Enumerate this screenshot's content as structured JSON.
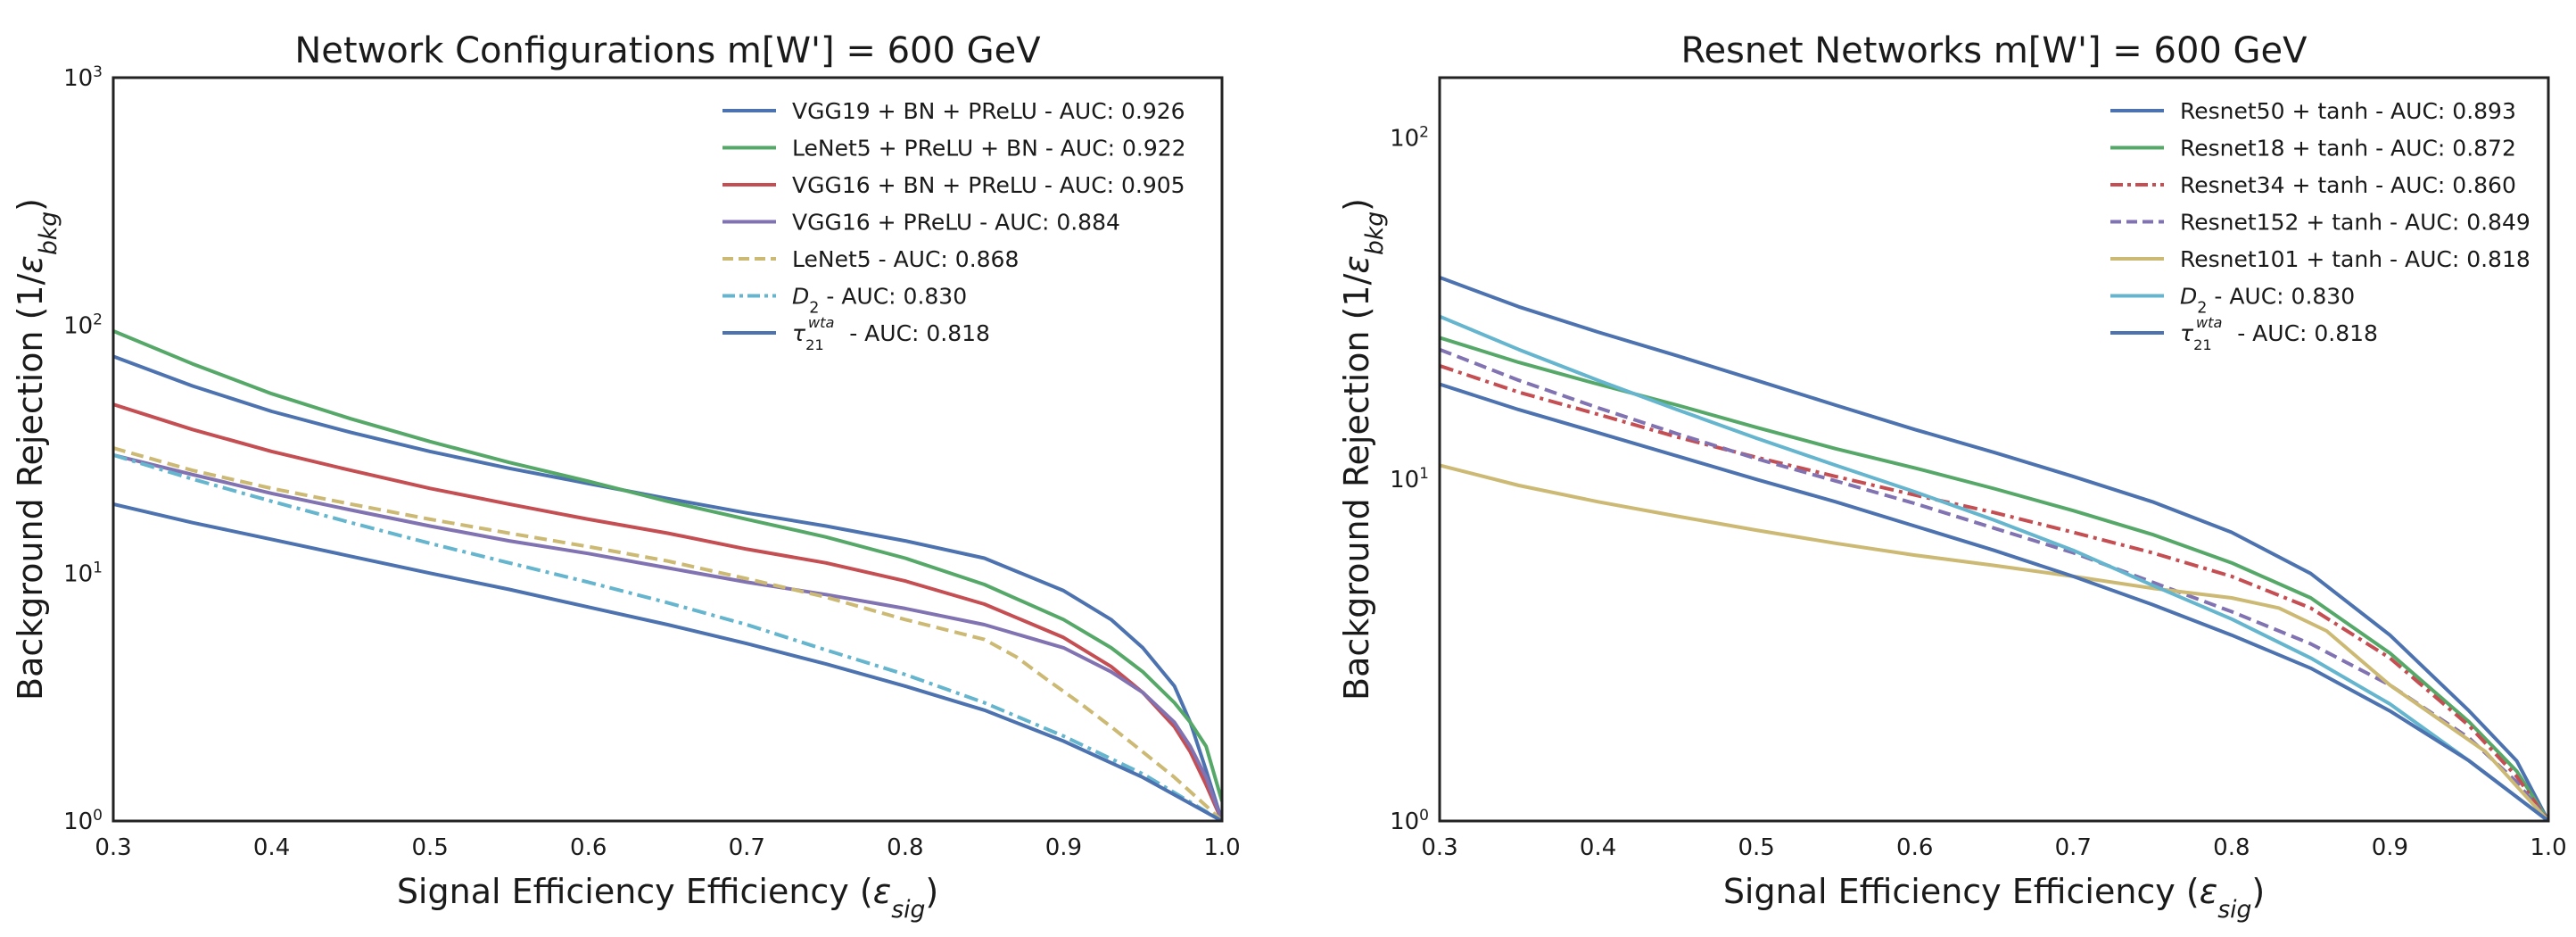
{
  "chart_data": [
    {
      "type": "line",
      "title": "Network Configurations m[W'] = 600 GeV",
      "xlabel": "Signal Efficiency Efficiency (ε_sig)",
      "ylabel": "Background Rejection (1/ε_bkg)",
      "xlim": [
        0.3,
        1.0
      ],
      "ylim": [
        1,
        1000
      ],
      "yscale": "log",
      "xticks": [
        0.3,
        0.4,
        0.5,
        0.6,
        0.7,
        0.8,
        0.9,
        1.0
      ],
      "xtick_labels": [
        "0.3",
        "0.4",
        "0.5",
        "0.6",
        "0.7",
        "0.8",
        "0.9",
        "1.0"
      ],
      "yticks": [
        {
          "base": "10",
          "exp": "0",
          "v": 1
        },
        {
          "base": "10",
          "exp": "1",
          "v": 10
        },
        {
          "base": "10",
          "exp": "2",
          "v": 100
        },
        {
          "base": "10",
          "exp": "3",
          "v": 1000
        }
      ],
      "grid": false,
      "legend": "top-right",
      "series": [
        {
          "name": "VGG19 + BN + PReLU - AUC: 0.926",
          "color": "#4c72b0",
          "dash": "solid",
          "x": [
            0.3,
            0.35,
            0.4,
            0.45,
            0.5,
            0.55,
            0.6,
            0.65,
            0.7,
            0.75,
            0.8,
            0.85,
            0.9,
            0.93,
            0.95,
            0.97,
            0.98,
            0.99,
            1.0
          ],
          "y": [
            75,
            57,
            45,
            37,
            31,
            26.5,
            23,
            20,
            17.5,
            15.5,
            13.5,
            11.5,
            8.5,
            6.5,
            5,
            3.5,
            2.5,
            1.6,
            1.0
          ]
        },
        {
          "name": "LeNet5 + PReLU + BN - AUC: 0.922",
          "color": "#55a868",
          "dash": "solid",
          "x": [
            0.3,
            0.35,
            0.4,
            0.45,
            0.5,
            0.55,
            0.6,
            0.65,
            0.7,
            0.75,
            0.8,
            0.85,
            0.9,
            0.93,
            0.95,
            0.97,
            0.98,
            0.99,
            1.0
          ],
          "y": [
            95,
            70,
            53,
            42,
            34,
            28,
            23.5,
            19.5,
            16.5,
            14,
            11.5,
            9,
            6.5,
            5,
            4,
            3,
            2.5,
            2,
            1.2
          ]
        },
        {
          "name": "VGG16 + BN + PReLU - AUC: 0.905",
          "color": "#c44e52",
          "dash": "solid",
          "x": [
            0.3,
            0.35,
            0.4,
            0.45,
            0.5,
            0.55,
            0.6,
            0.65,
            0.7,
            0.75,
            0.8,
            0.85,
            0.9,
            0.93,
            0.95,
            0.97,
            0.98,
            0.99,
            1.0
          ],
          "y": [
            48,
            38,
            31,
            26,
            22,
            19,
            16.5,
            14.5,
            12.5,
            11,
            9.3,
            7.5,
            5.5,
            4.2,
            3.3,
            2.4,
            1.9,
            1.4,
            1.0
          ]
        },
        {
          "name": "VGG16 + PReLU - AUC: 0.884",
          "color": "#8172b2",
          "dash": "solid",
          "x": [
            0.3,
            0.35,
            0.4,
            0.45,
            0.5,
            0.55,
            0.6,
            0.65,
            0.7,
            0.75,
            0.8,
            0.85,
            0.9,
            0.93,
            0.95,
            0.97,
            0.98,
            0.99,
            1.0
          ],
          "y": [
            30,
            25,
            21,
            18,
            15.5,
            13.5,
            12,
            10.5,
            9.2,
            8.2,
            7.2,
            6.2,
            5,
            4,
            3.3,
            2.5,
            2,
            1.5,
            1.0
          ]
        },
        {
          "name": "LeNet5 - AUC: 0.868",
          "color": "#ccb974",
          "dash": "dashed",
          "x": [
            0.3,
            0.35,
            0.4,
            0.45,
            0.5,
            0.55,
            0.6,
            0.65,
            0.7,
            0.75,
            0.8,
            0.85,
            0.87,
            0.89,
            0.91,
            0.93,
            0.95,
            0.97,
            0.99,
            1.0
          ],
          "y": [
            32,
            26,
            22,
            19,
            16.5,
            14.5,
            12.8,
            11.2,
            9.5,
            8,
            6.5,
            5.4,
            4.6,
            3.7,
            3,
            2.4,
            1.9,
            1.5,
            1.15,
            1.0
          ]
        },
        {
          "name": "D₂ - AUC: 0.830",
          "color": "#64b5cd",
          "dash": "dashdot",
          "x": [
            0.3,
            0.35,
            0.4,
            0.45,
            0.5,
            0.55,
            0.6,
            0.65,
            0.7,
            0.75,
            0.8,
            0.85,
            0.9,
            0.95,
            1.0
          ],
          "y": [
            30,
            24,
            19.5,
            16,
            13.2,
            11,
            9.2,
            7.6,
            6.2,
            4.9,
            3.9,
            3,
            2.2,
            1.55,
            1.0
          ]
        },
        {
          "name": "τ₂₁^wta - AUC: 0.818",
          "color": "#4c72b0",
          "dash": "solid",
          "x": [
            0.3,
            0.35,
            0.4,
            0.45,
            0.5,
            0.55,
            0.6,
            0.65,
            0.7,
            0.75,
            0.8,
            0.85,
            0.9,
            0.95,
            1.0
          ],
          "y": [
            19,
            16,
            13.7,
            11.7,
            10,
            8.6,
            7.3,
            6.2,
            5.2,
            4.3,
            3.5,
            2.8,
            2.1,
            1.5,
            1.0
          ]
        }
      ]
    },
    {
      "type": "line",
      "title": "Resnet Networks m[W'] = 600 GeV",
      "xlabel": "Signal Efficiency Efficiency (ε_sig)",
      "ylabel": "Background Rejection (1/ε_bkg)",
      "xlim": [
        0.3,
        1.0
      ],
      "ylim": [
        1,
        150
      ],
      "yscale": "log",
      "xticks": [
        0.3,
        0.4,
        0.5,
        0.6,
        0.7,
        0.8,
        0.9,
        1.0
      ],
      "xtick_labels": [
        "0.3",
        "0.4",
        "0.5",
        "0.6",
        "0.7",
        "0.8",
        "0.9",
        "1.0"
      ],
      "yticks": [
        {
          "base": "10",
          "exp": "0",
          "v": 1
        },
        {
          "base": "10",
          "exp": "1",
          "v": 10
        },
        {
          "base": "10",
          "exp": "2",
          "v": 100
        }
      ],
      "grid": false,
      "legend": "top-right",
      "series": [
        {
          "name": "Resnet50 + tanh - AUC: 0.893",
          "color": "#4c72b0",
          "dash": "solid",
          "x": [
            0.3,
            0.35,
            0.4,
            0.45,
            0.5,
            0.55,
            0.6,
            0.65,
            0.7,
            0.75,
            0.8,
            0.85,
            0.9,
            0.95,
            0.98,
            1.0
          ],
          "y": [
            39,
            32,
            27,
            23,
            19.5,
            16.5,
            14,
            12,
            10.2,
            8.6,
            7,
            5.3,
            3.5,
            2.1,
            1.5,
            1.0
          ]
        },
        {
          "name": "Resnet18 + tanh - AUC: 0.872",
          "color": "#55a868",
          "dash": "solid",
          "x": [
            0.3,
            0.35,
            0.4,
            0.45,
            0.5,
            0.55,
            0.6,
            0.65,
            0.7,
            0.75,
            0.8,
            0.85,
            0.9,
            0.95,
            0.98,
            1.0
          ],
          "y": [
            26,
            22,
            19,
            16.5,
            14.2,
            12.3,
            10.8,
            9.4,
            8.1,
            6.9,
            5.7,
            4.5,
            3.1,
            1.95,
            1.4,
            1.0
          ]
        },
        {
          "name": "Resnet34 + tanh - AUC: 0.860",
          "color": "#c44e52",
          "dash": "dashdot",
          "x": [
            0.3,
            0.35,
            0.4,
            0.45,
            0.5,
            0.55,
            0.6,
            0.65,
            0.7,
            0.75,
            0.8,
            0.85,
            0.9,
            0.95,
            0.98,
            1.0
          ],
          "y": [
            21.5,
            18,
            15.5,
            13.3,
            11.6,
            10.2,
            9,
            8,
            7,
            6.1,
            5.2,
            4.2,
            3,
            1.9,
            1.35,
            1.0
          ]
        },
        {
          "name": "Resnet152 + tanh - AUC: 0.849",
          "color": "#8172b2",
          "dash": "dashed",
          "x": [
            0.3,
            0.35,
            0.4,
            0.45,
            0.5,
            0.55,
            0.6,
            0.65,
            0.7,
            0.75,
            0.8,
            0.85,
            0.9,
            0.95,
            0.98,
            1.0
          ],
          "y": [
            24,
            19.5,
            16.2,
            13.6,
            11.5,
            9.9,
            8.5,
            7.2,
            6.1,
            5,
            4.1,
            3.3,
            2.5,
            1.75,
            1.3,
            1.0
          ]
        },
        {
          "name": "Resnet101 + tanh - AUC: 0.818",
          "color": "#ccb974",
          "dash": "solid",
          "x": [
            0.3,
            0.35,
            0.4,
            0.45,
            0.5,
            0.55,
            0.6,
            0.65,
            0.7,
            0.75,
            0.8,
            0.83,
            0.86,
            0.88,
            0.9,
            0.93,
            0.96,
            1.0
          ],
          "y": [
            11,
            9.6,
            8.6,
            7.8,
            7.1,
            6.5,
            6,
            5.6,
            5.2,
            4.8,
            4.5,
            4.2,
            3.6,
            3,
            2.5,
            2,
            1.6,
            1.0
          ]
        },
        {
          "name": "D₂ - AUC: 0.830",
          "color": "#64b5cd",
          "dash": "solid",
          "x": [
            0.3,
            0.35,
            0.4,
            0.45,
            0.5,
            0.55,
            0.6,
            0.65,
            0.7,
            0.75,
            0.8,
            0.85,
            0.9,
            0.95,
            1.0
          ],
          "y": [
            30,
            24,
            19.5,
            16,
            13.2,
            11,
            9.2,
            7.6,
            6.2,
            4.9,
            3.9,
            3,
            2.2,
            1.5,
            1.0
          ]
        },
        {
          "name": "τ₂₁^wta - AUC: 0.818",
          "color": "#4c72b0",
          "dash": "solid",
          "x": [
            0.3,
            0.35,
            0.4,
            0.45,
            0.5,
            0.55,
            0.6,
            0.65,
            0.7,
            0.75,
            0.8,
            0.85,
            0.9,
            0.95,
            1.0
          ],
          "y": [
            19,
            16,
            13.7,
            11.7,
            10,
            8.6,
            7.3,
            6.2,
            5.2,
            4.3,
            3.5,
            2.8,
            2.1,
            1.5,
            1.0
          ]
        }
      ]
    }
  ]
}
